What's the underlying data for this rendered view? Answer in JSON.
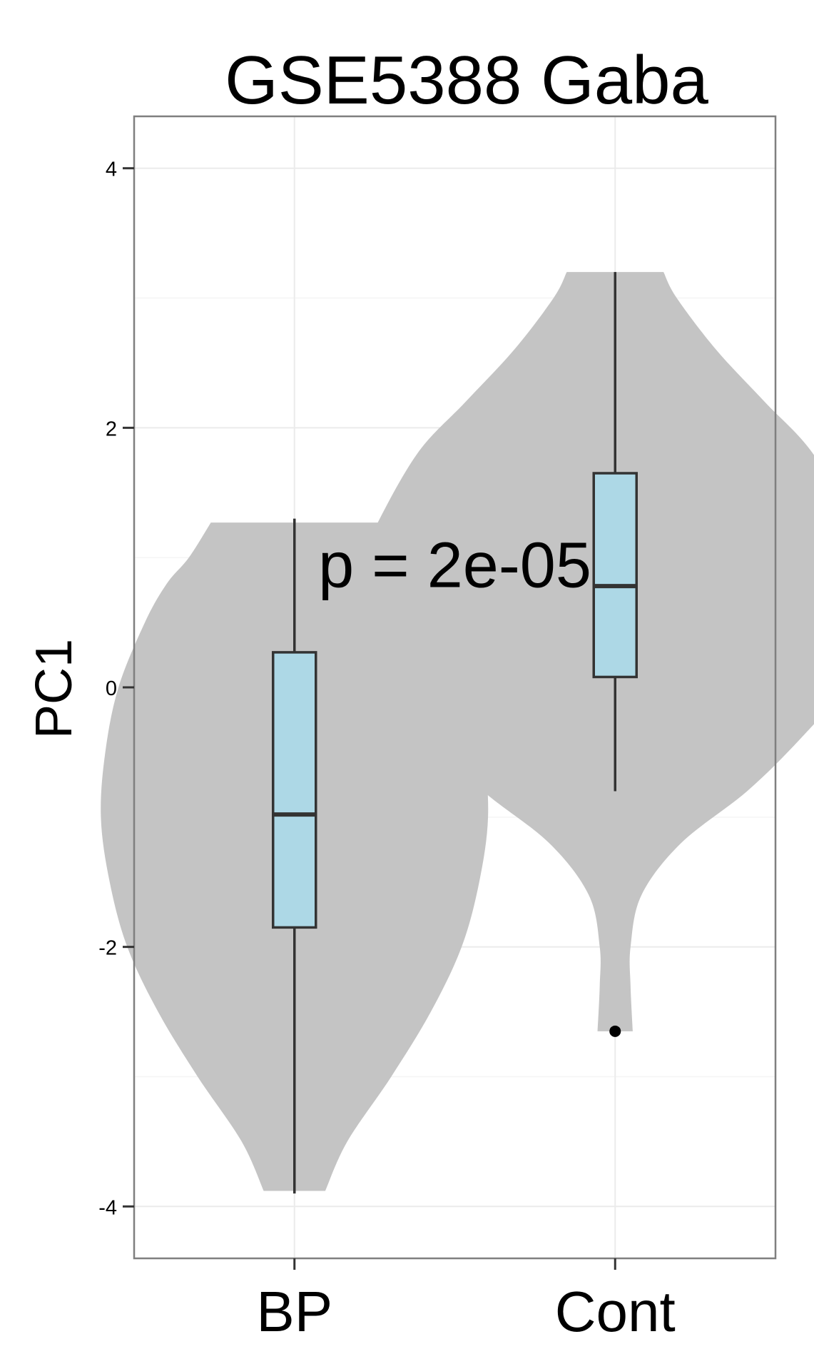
{
  "chart_data": {
    "type": "violin",
    "title": "GSE5388 Gaba",
    "xlabel": "",
    "ylabel": "PC1",
    "ylim": [
      -4.4,
      4.4
    ],
    "yticks": [
      -4,
      -2,
      0,
      2,
      4
    ],
    "ytick_labels": [
      "-4",
      "-2",
      "0",
      "2",
      "4"
    ],
    "grid": true,
    "legend": "none",
    "annotation": {
      "text": "p = 2e-05",
      "x": 1.5,
      "y": 0.95
    },
    "categories": [
      "BP",
      "Cont"
    ],
    "groups": [
      {
        "name": "BP",
        "box": {
          "min": -3.9,
          "q1": -1.85,
          "median": -0.98,
          "q3": 0.27,
          "max": 1.3
        },
        "outliers": [],
        "density": [
          [
            -3.88,
            0.07
          ],
          [
            -3.5,
            0.12
          ],
          [
            -3.0,
            0.22
          ],
          [
            -2.5,
            0.31
          ],
          [
            -2.0,
            0.38
          ],
          [
            -1.5,
            0.42
          ],
          [
            -1.0,
            0.44
          ],
          [
            -0.5,
            0.43
          ],
          [
            0.0,
            0.4
          ],
          [
            0.5,
            0.34
          ],
          [
            0.8,
            0.29
          ],
          [
            1.0,
            0.24
          ],
          [
            1.27,
            0.19
          ]
        ]
      },
      {
        "name": "Cont",
        "box": {
          "min": -0.8,
          "q1": 0.08,
          "median": 0.78,
          "q3": 1.65,
          "max": 3.2
        },
        "outliers": [
          -2.65
        ],
        "density": [
          [
            -2.65,
            0.04
          ],
          [
            -2.3,
            0.035
          ],
          [
            -2.0,
            0.035
          ],
          [
            -1.6,
            0.06
          ],
          [
            -1.2,
            0.15
          ],
          [
            -0.8,
            0.3
          ],
          [
            -0.4,
            0.42
          ],
          [
            0.0,
            0.52
          ],
          [
            0.5,
            0.6
          ],
          [
            0.8,
            0.6
          ],
          [
            1.2,
            0.55
          ],
          [
            1.8,
            0.45
          ],
          [
            2.2,
            0.34
          ],
          [
            2.6,
            0.23
          ],
          [
            3.0,
            0.14
          ],
          [
            3.2,
            0.11
          ]
        ]
      }
    ],
    "colors": {
      "violin_fill": "#c4c4c4",
      "box_fill": "#add8e6",
      "box_stroke": "#333333",
      "grid_major": "#ebebeb",
      "grid_minor": "#f5f5f5",
      "panel_border": "#7f7f7f",
      "text": "#000000"
    }
  }
}
